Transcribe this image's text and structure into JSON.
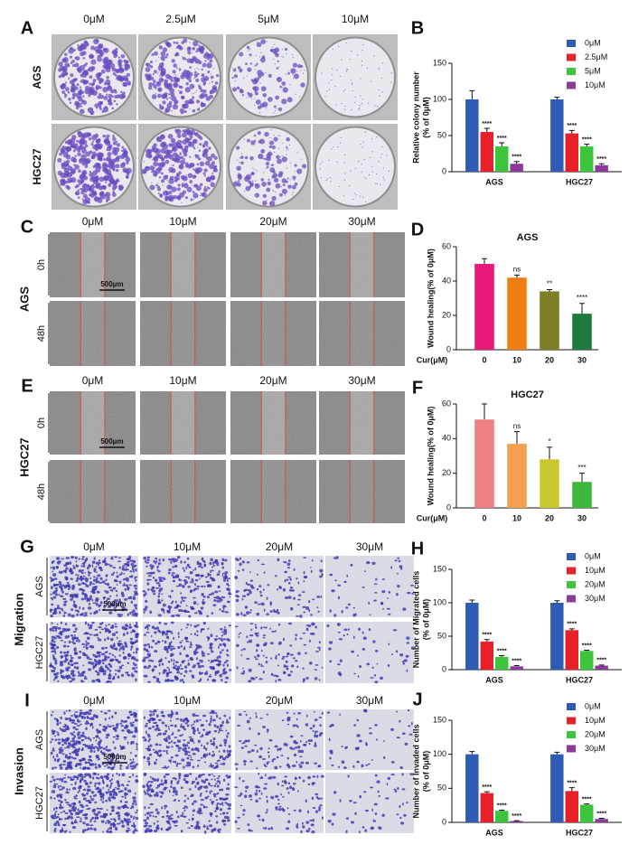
{
  "image_panels": [
    {
      "letter": "A",
      "columns": [
        "0μM",
        "2.5μM",
        "5μM",
        "10μM"
      ],
      "rows": [
        "AGS",
        "HGC27"
      ]
    },
    {
      "letter": "C",
      "columns": [
        "0μM",
        "10μM",
        "20μM",
        "30μM"
      ],
      "group": "AGS",
      "rows": [
        "0h",
        "48h"
      ],
      "scale_bar": "500μm"
    },
    {
      "letter": "E",
      "columns": [
        "0μM",
        "10μM",
        "20μM",
        "30μM"
      ],
      "group": "HGC27",
      "rows": [
        "0h",
        "48h"
      ],
      "scale_bar": "500μm"
    },
    {
      "letter": "G",
      "columns": [
        "0μM",
        "10μM",
        "20μM",
        "30μM"
      ],
      "group": "Migration",
      "rows": [
        "AGS",
        "HGC27"
      ],
      "scale_bar": "500μm"
    },
    {
      "letter": "I",
      "columns": [
        "0μM",
        "10μM",
        "20μM",
        "30μM"
      ],
      "group": "Invasion",
      "rows": [
        "AGS",
        "HGC27"
      ],
      "scale_bar": "500μm"
    }
  ],
  "chart_data": [
    {
      "type": "bar",
      "letter": "B",
      "y_label": [
        "Relative colony number",
        "(% of 0μM)"
      ],
      "categories": [
        "AGS",
        "HGC27"
      ],
      "series": [
        {
          "name": "0μM",
          "color": "#2c5cb4",
          "values": [
            100,
            100
          ],
          "errors": [
            12,
            3
          ]
        },
        {
          "name": "2.5μM",
          "color": "#e8202a",
          "values": [
            55,
            53
          ],
          "errors": [
            5,
            4
          ],
          "annotations": [
            "****",
            "****"
          ]
        },
        {
          "name": "5μM",
          "color": "#3cc43c",
          "values": [
            35,
            35
          ],
          "errors": [
            5,
            3
          ],
          "annotations": [
            "****",
            "****"
          ]
        },
        {
          "name": "10μM",
          "color": "#8b3a9c",
          "values": [
            11,
            9
          ],
          "errors": [
            3,
            2
          ],
          "annotations": [
            "****",
            "****"
          ]
        }
      ],
      "ylim": [
        0,
        150
      ],
      "yticks": [
        0,
        50,
        100,
        150
      ],
      "legend": "upper-right"
    },
    {
      "type": "bar",
      "letter": "D",
      "title": "AGS",
      "y_label": [
        "Wound healing(% of 0μM)"
      ],
      "x_label": "Cur(μM)",
      "categories": [
        "0",
        "10",
        "20",
        "30"
      ],
      "values": [
        50,
        42,
        34,
        21
      ],
      "errors": [
        3,
        1.5,
        1,
        6
      ],
      "colors": [
        "#e8197a",
        "#f07d10",
        "#7d7d2a",
        "#1e7a3c"
      ],
      "annotations": [
        null,
        "ns",
        "**",
        "****"
      ],
      "ylim": [
        0,
        60
      ],
      "yticks": [
        0,
        20,
        40,
        60
      ]
    },
    {
      "type": "bar",
      "letter": "F",
      "title": "HGC27",
      "y_label": [
        "Wound healing(% of 0μM)"
      ],
      "x_label": "Cur(μM)",
      "categories": [
        "0",
        "10",
        "20",
        "30"
      ],
      "values": [
        51,
        37,
        28,
        15
      ],
      "errors": [
        9,
        7,
        7,
        5
      ],
      "colors": [
        "#f08080",
        "#f5a050",
        "#c8c830",
        "#3cb83c"
      ],
      "annotations": [
        null,
        "ns",
        "*",
        "***"
      ],
      "ylim": [
        0,
        60
      ],
      "yticks": [
        0,
        20,
        40,
        60
      ]
    },
    {
      "type": "bar",
      "letter": "H",
      "y_label": [
        "Number of Migrated cells",
        "(% of 0μM)"
      ],
      "categories": [
        "AGS",
        "HGC27"
      ],
      "series": [
        {
          "name": "0μM",
          "color": "#2c5cb4",
          "values": [
            100,
            100
          ],
          "errors": [
            4,
            3
          ]
        },
        {
          "name": "10μM",
          "color": "#e8202a",
          "values": [
            42,
            59
          ],
          "errors": [
            3,
            2
          ],
          "annotations": [
            "****",
            "****"
          ]
        },
        {
          "name": "20μM",
          "color": "#3cc43c",
          "values": [
            19,
            28
          ],
          "errors": [
            2,
            1
          ],
          "annotations": [
            "****",
            "****"
          ]
        },
        {
          "name": "30μM",
          "color": "#8b3a9c",
          "values": [
            5,
            6
          ],
          "errors": [
            1,
            1
          ],
          "annotations": [
            "****",
            "****"
          ]
        }
      ],
      "ylim": [
        0,
        150
      ],
      "yticks": [
        0,
        50,
        100,
        150
      ],
      "legend": "upper-right"
    },
    {
      "type": "bar",
      "letter": "J",
      "y_label": [
        "Number of Invaded cells",
        "(% of 0μM)"
      ],
      "categories": [
        "AGS",
        "HGC27"
      ],
      "series": [
        {
          "name": "0μM",
          "color": "#2c5cb4",
          "values": [
            100,
            100
          ],
          "errors": [
            4,
            3
          ]
        },
        {
          "name": "10μM",
          "color": "#e8202a",
          "values": [
            43,
            46
          ],
          "errors": [
            2,
            5
          ],
          "annotations": [
            "****",
            "****"
          ]
        },
        {
          "name": "20μM",
          "color": "#3cc43c",
          "values": [
            17,
            26
          ],
          "errors": [
            1,
            1
          ],
          "annotations": [
            "****",
            "****"
          ]
        },
        {
          "name": "30μM",
          "color": "#8b3a9c",
          "values": [
            2,
            5
          ],
          "errors": [
            0.5,
            1
          ],
          "annotations": [
            "****",
            "****"
          ]
        }
      ],
      "ylim": [
        0,
        150
      ],
      "yticks": [
        0,
        50,
        100,
        150
      ],
      "legend": "upper-right"
    }
  ]
}
